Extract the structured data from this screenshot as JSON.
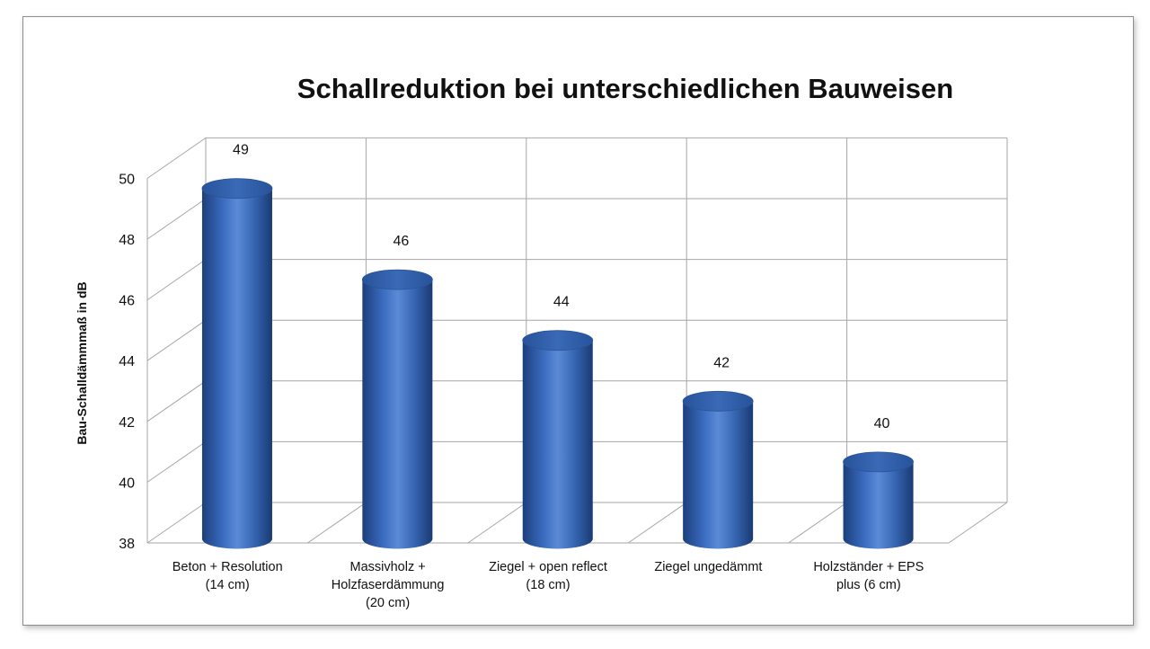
{
  "chart_data": {
    "type": "bar",
    "title": "Schallreduktion bei unterschiedlichen Bauweisen",
    "xlabel": "",
    "ylabel": "Bau-Schalldämmmaß in dB",
    "ylim": [
      38,
      50
    ],
    "yticks": [
      38,
      40,
      42,
      44,
      46,
      48,
      50
    ],
    "grid": true,
    "style": "3d-cylinder",
    "bar_color": "#3d6db5",
    "categories": [
      [
        "Beton + Resolution",
        "(14 cm)"
      ],
      [
        "Massivholz +",
        "Holzfaserdämmung",
        "(20 cm)"
      ],
      [
        "Ziegel + open reflect",
        "(18 cm)"
      ],
      [
        "Ziegel ungedämmt"
      ],
      [
        "Holzständer + EPS",
        "plus (6 cm)"
      ]
    ],
    "values": [
      49,
      46,
      44,
      42,
      40
    ],
    "data_labels": [
      "49",
      "46",
      "44",
      "42",
      "40"
    ]
  }
}
